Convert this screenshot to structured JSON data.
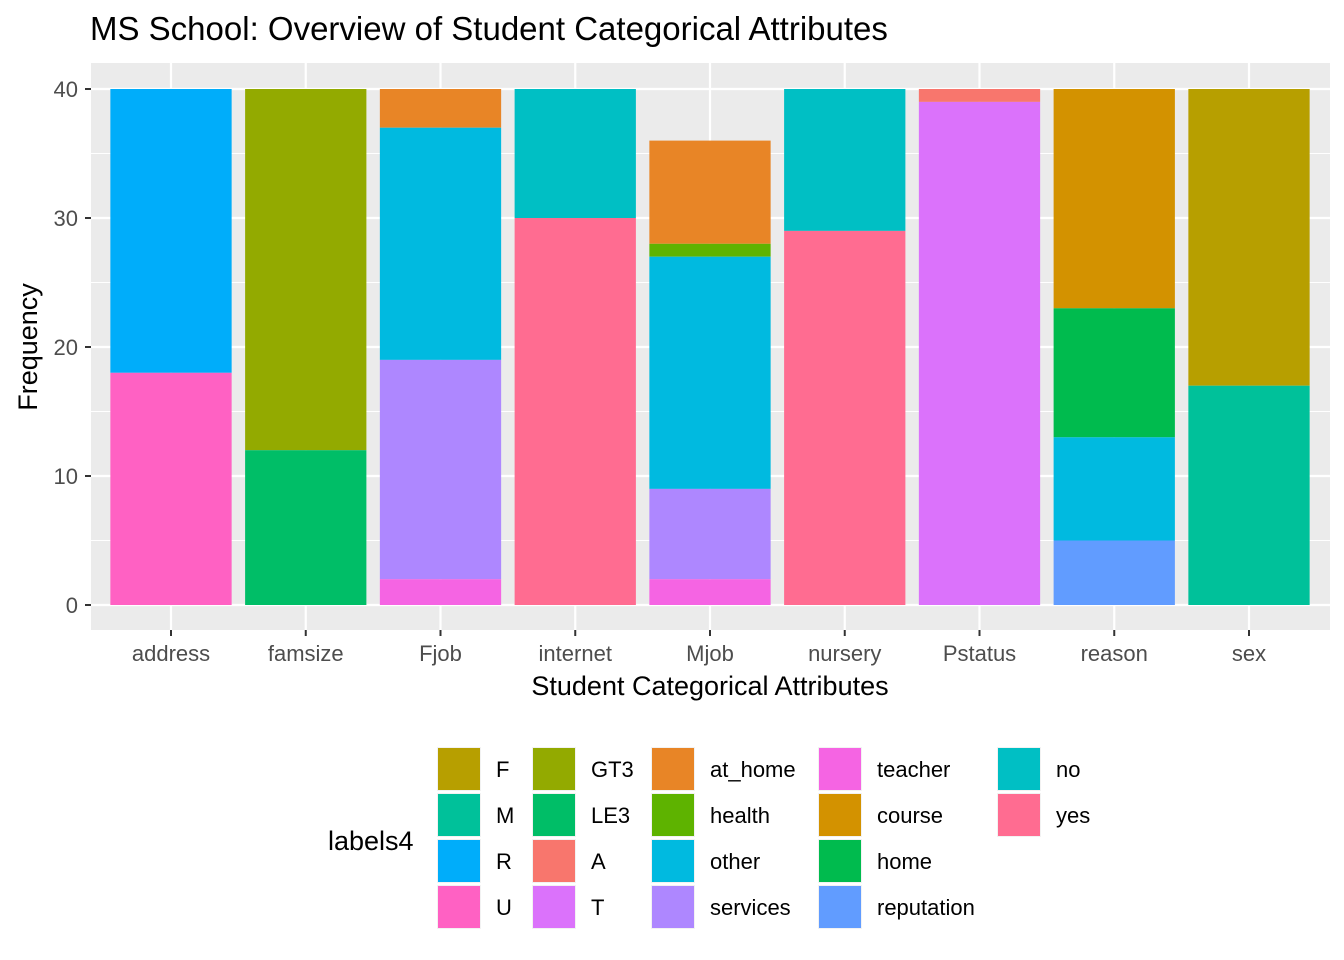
{
  "chart_data": {
    "type": "bar",
    "stacked": true,
    "title": "MS School: Overview of Student Categorical Attributes",
    "xlabel": "Student Categorical Attributes",
    "ylabel": "Frequency",
    "ylim": [
      0,
      41.5
    ],
    "yticks": [
      0,
      10,
      20,
      30,
      40
    ],
    "grid": true,
    "legend_title": "labels4",
    "legend_position": "bottom",
    "categories": [
      "address",
      "famsize",
      "Fjob",
      "internet",
      "Mjob",
      "nursery",
      "Pstatus",
      "reason",
      "sex"
    ],
    "levels": [
      {
        "label": "F",
        "color": "#B79F00"
      },
      {
        "label": "M",
        "color": "#00C19A"
      },
      {
        "label": "R",
        "color": "#00ADFA"
      },
      {
        "label": "U",
        "color": "#FF61C3"
      },
      {
        "label": "GT3",
        "color": "#93AA00"
      },
      {
        "label": "LE3",
        "color": "#00BE67"
      },
      {
        "label": "A",
        "color": "#F8766D"
      },
      {
        "label": "T",
        "color": "#DB72FB"
      },
      {
        "label": "at_home",
        "color": "#E88526"
      },
      {
        "label": "health",
        "color": "#5EB300"
      },
      {
        "label": "other",
        "color": "#00BAE0"
      },
      {
        "label": "services",
        "color": "#AE87FF"
      },
      {
        "label": "teacher",
        "color": "#F564E3"
      },
      {
        "label": "course",
        "color": "#D39200"
      },
      {
        "label": "home",
        "color": "#00BB4E"
      },
      {
        "label": "reputation",
        "color": "#619CFF"
      },
      {
        "label": "no",
        "color": "#00BFC4"
      },
      {
        "label": "yes",
        "color": "#FF6C91"
      }
    ],
    "stacks": [
      {
        "category": "address",
        "segments": [
          {
            "level": "R",
            "value": 22
          },
          {
            "level": "U",
            "value": 18
          }
        ]
      },
      {
        "category": "famsize",
        "segments": [
          {
            "level": "GT3",
            "value": 28
          },
          {
            "level": "LE3",
            "value": 12
          }
        ]
      },
      {
        "category": "Fjob",
        "segments": [
          {
            "level": "at_home",
            "value": 3
          },
          {
            "level": "other",
            "value": 18
          },
          {
            "level": "services",
            "value": 17
          },
          {
            "level": "teacher",
            "value": 2
          }
        ]
      },
      {
        "category": "internet",
        "segments": [
          {
            "level": "no",
            "value": 10
          },
          {
            "level": "yes",
            "value": 30
          }
        ]
      },
      {
        "category": "Mjob",
        "segments": [
          {
            "level": "at_home",
            "value": 8
          },
          {
            "level": "health",
            "value": 1
          },
          {
            "level": "other",
            "value": 18
          },
          {
            "level": "services",
            "value": 7
          },
          {
            "level": "teacher",
            "value": 2
          }
        ]
      },
      {
        "category": "nursery",
        "segments": [
          {
            "level": "no",
            "value": 11
          },
          {
            "level": "yes",
            "value": 29
          }
        ]
      },
      {
        "category": "Pstatus",
        "segments": [
          {
            "level": "A",
            "value": 1
          },
          {
            "level": "T",
            "value": 39
          }
        ]
      },
      {
        "category": "reason",
        "segments": [
          {
            "level": "course",
            "value": 17
          },
          {
            "level": "home",
            "value": 10
          },
          {
            "level": "other",
            "value": 8
          },
          {
            "level": "reputation",
            "value": 5
          }
        ]
      },
      {
        "category": "sex",
        "segments": [
          {
            "level": "F",
            "value": 23
          },
          {
            "level": "M",
            "value": 17
          }
        ]
      }
    ]
  }
}
